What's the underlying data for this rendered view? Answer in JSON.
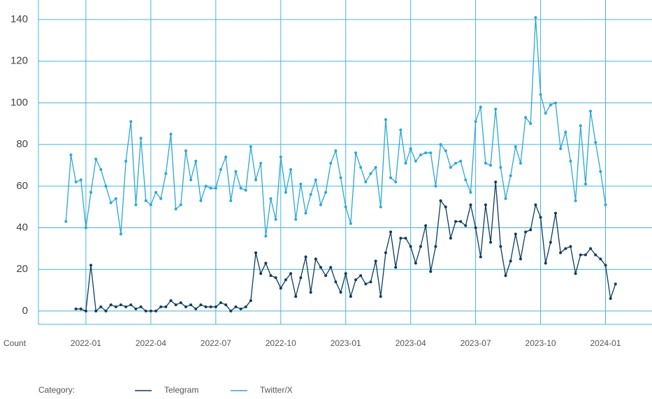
{
  "chart_data": {
    "type": "line",
    "y_label": "Count",
    "legend_title": "Category:",
    "x": [
      0,
      1,
      2,
      3,
      4,
      5,
      6,
      7,
      8,
      9,
      10,
      11,
      12,
      13,
      14,
      15,
      16,
      17,
      18,
      19,
      20,
      21,
      22,
      23,
      24,
      25,
      26,
      27,
      28,
      29,
      30,
      31,
      32,
      33,
      34,
      35,
      36,
      37,
      38,
      39,
      40,
      41,
      42,
      43,
      44,
      45,
      46,
      47,
      48,
      49,
      50,
      51,
      52,
      53,
      54,
      55,
      56,
      57,
      58,
      59,
      60,
      61,
      62,
      63,
      64,
      65,
      66,
      67,
      68,
      69,
      70,
      71,
      72,
      73,
      74,
      75,
      76,
      77,
      78,
      79,
      80,
      81,
      82,
      83,
      84,
      85,
      86,
      87,
      88,
      89,
      90,
      91,
      92,
      93,
      94,
      95,
      96,
      97,
      98,
      99,
      100,
      101,
      102,
      103,
      104,
      105,
      106,
      107,
      108,
      109,
      110
    ],
    "series": [
      {
        "name": "Telegram",
        "color": "#0d3c5e",
        "values": [
          null,
          null,
          1,
          1,
          0,
          22,
          0,
          2,
          0,
          3,
          2,
          3,
          2,
          3,
          1,
          2,
          0,
          0,
          0,
          2,
          2,
          5,
          3,
          4,
          2,
          3,
          1,
          3,
          2,
          2,
          2,
          4,
          3,
          0,
          2,
          1,
          2,
          5,
          28,
          18,
          23,
          17,
          16,
          11,
          15,
          18,
          7,
          16,
          26,
          9,
          25,
          21,
          17,
          21,
          14,
          9,
          18,
          7,
          15,
          17,
          13,
          14,
          24,
          7,
          28,
          38,
          21,
          35,
          35,
          31,
          23,
          31,
          41,
          19,
          31,
          53,
          50,
          35,
          43,
          43,
          41,
          51,
          40,
          26,
          51,
          33,
          62,
          31,
          17,
          24,
          37,
          25,
          38,
          39,
          51,
          45,
          23,
          33,
          47,
          28,
          30,
          31,
          18,
          27,
          27,
          30,
          27,
          25,
          22,
          6,
          13
        ]
      },
      {
        "name": "Twitter/X",
        "color": "#2aa7d8",
        "values": [
          43,
          75,
          62,
          63,
          40,
          57,
          73,
          68,
          60,
          52,
          54,
          37,
          72,
          91,
          51,
          83,
          53,
          51,
          57,
          54,
          66,
          85,
          49,
          51,
          77,
          63,
          72,
          53,
          60,
          59,
          59,
          68,
          74,
          53,
          67,
          59,
          58,
          79,
          63,
          71,
          36,
          54,
          44,
          74,
          57,
          68,
          44,
          61,
          47,
          56,
          63,
          51,
          57,
          71,
          77,
          64,
          50,
          42,
          76,
          69,
          62,
          66,
          69,
          50,
          92,
          64,
          62,
          87,
          71,
          78,
          72,
          75,
          76,
          76,
          60,
          80,
          77,
          69,
          71,
          72,
          63,
          57,
          91,
          98,
          71,
          70,
          97,
          69,
          54,
          65,
          79,
          71,
          93,
          90,
          141,
          104,
          95,
          99,
          100,
          78,
          86,
          72,
          53,
          89,
          61,
          96,
          81,
          67,
          51,
          null,
          null
        ]
      }
    ],
    "xlim": [
      -5.5,
      117.3
    ],
    "xticks": [
      {
        "value": 4,
        "label": "2022-01"
      },
      {
        "value": 17,
        "label": "2022-04"
      },
      {
        "value": 30,
        "label": "2022-07"
      },
      {
        "value": 43,
        "label": "2022-10"
      },
      {
        "value": 56,
        "label": "2023-01"
      },
      {
        "value": 69,
        "label": "2023-04"
      },
      {
        "value": 82,
        "label": "2023-07"
      },
      {
        "value": 95,
        "label": "2023-10"
      },
      {
        "value": 108,
        "label": "2024-01"
      }
    ],
    "ylim": [
      -6.4,
      149.4
    ],
    "yticks": [
      0,
      20,
      40,
      60,
      80,
      100,
      120,
      140
    ],
    "grid": true
  }
}
